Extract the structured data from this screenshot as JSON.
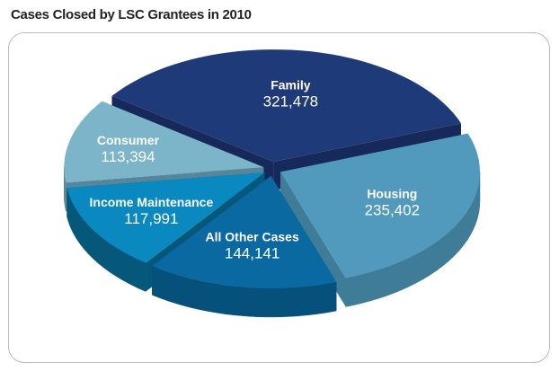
{
  "chart_data": {
    "type": "pie",
    "title": "Cases Closed by LSC Grantees in 2010",
    "style": "3d-exploded",
    "slices": [
      {
        "label": "Family",
        "value": 321478,
        "value_text": "321,478",
        "color": "#1f3a78",
        "side": "#16295a"
      },
      {
        "label": "Housing",
        "value": 235402,
        "value_text": "235,402",
        "color": "#519abd",
        "side": "#3f7c98"
      },
      {
        "label": "All Other Cases",
        "value": 144141,
        "value_text": "144,141",
        "color": "#0a69a0",
        "side": "#06507c"
      },
      {
        "label": "Income Maintenance",
        "value": 117991,
        "value_text": "117,991",
        "color": "#0a88c0",
        "side": "#06587a"
      },
      {
        "label": "Consumer",
        "value": 113394,
        "value_text": "113,394",
        "color": "#7cb4c9",
        "side": "#57869a"
      }
    ]
  }
}
